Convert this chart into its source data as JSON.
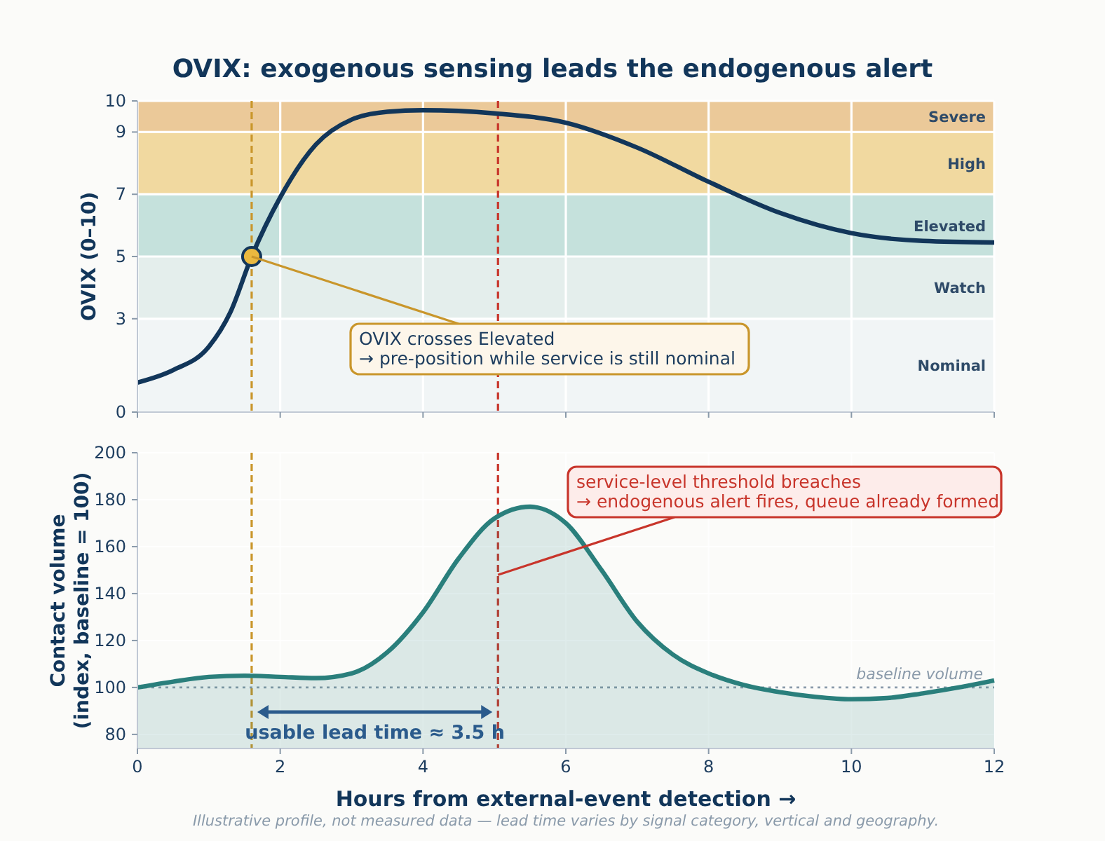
{
  "chart_data": [
    {
      "type": "line",
      "title": "OVIX: exogenous sensing leads the endogenous alert",
      "ylabel": "OVIX  (0–10)",
      "xlim": [
        0,
        12
      ],
      "xticks": [
        0,
        2,
        4,
        6,
        8,
        10,
        12
      ],
      "ylim": [
        0,
        10
      ],
      "yticks": [
        0,
        3,
        5,
        7,
        9,
        10
      ],
      "tick_labels": "y",
      "grid": true,
      "bands": [
        {
          "axis": "y",
          "from": 0,
          "to": 3,
          "label": "Nominal",
          "color": "#f1f5f6"
        },
        {
          "axis": "y",
          "from": 3,
          "to": 5,
          "label": "Watch",
          "color": "#e4eeec"
        },
        {
          "axis": "y",
          "from": 5,
          "to": 7,
          "label": "Elevated",
          "color": "#c5e1dc"
        },
        {
          "axis": "y",
          "from": 7,
          "to": 9,
          "label": "High",
          "color": "#f1d9a0"
        },
        {
          "axis": "y",
          "from": 9,
          "to": 10,
          "label": "Severe",
          "color": "#ebc999"
        }
      ],
      "ref_lines": [
        {
          "axis": "x",
          "value": 1.6,
          "color": "#c9962b",
          "line_style": "dashed"
        },
        {
          "axis": "x",
          "value": 5.05,
          "color": "#c8352b",
          "line_style": "dashed"
        }
      ],
      "series": [
        {
          "color": "#12365a",
          "x": [
            0,
            0.5,
            1,
            1.3,
            1.6,
            2,
            2.5,
            3,
            3.5,
            4,
            5,
            6,
            7,
            8,
            9,
            10,
            11,
            12
          ],
          "values": [
            0.95,
            1.35,
            2.1,
            3.2,
            5.0,
            6.9,
            8.6,
            9.4,
            9.65,
            9.7,
            9.6,
            9.3,
            8.5,
            7.4,
            6.4,
            5.75,
            5.5,
            5.45
          ]
        },
        {
          "type": "scatter",
          "color": "#eab93f",
          "marker": "circle",
          "x": [
            1.6
          ],
          "values": [
            5
          ]
        }
      ],
      "annotations": [
        {
          "text": "OVIX crosses Elevated\n→ pre-position while service is still nominal",
          "x": 1.6,
          "y": 5
        }
      ]
    },
    {
      "type": "area",
      "xlabel": "Hours from external-event detection  →",
      "ylabel": "Contact volume\n(index, baseline = 100)",
      "xlim": [
        0,
        12
      ],
      "xticks": [
        0,
        2,
        4,
        6,
        8,
        10,
        12
      ],
      "ylim": [
        74,
        200
      ],
      "yticks": [
        80,
        100,
        120,
        140,
        160,
        180,
        200
      ],
      "grid": true,
      "ref_lines": [
        {
          "axis": "x",
          "value": 1.6,
          "color": "#c9962b",
          "line_style": "dashed"
        },
        {
          "axis": "x",
          "value": 5.05,
          "color": "#c8352b",
          "line_style": "dashed"
        },
        {
          "axis": "y",
          "value": 100,
          "label": "baseline volume",
          "color": "#8a9aaa",
          "line_style": "dotted"
        }
      ],
      "series": [
        {
          "color": "#2a7f7c",
          "x": [
            0,
            0.5,
            1,
            1.5,
            2,
            2.5,
            3,
            3.5,
            4,
            4.5,
            5,
            5.5,
            6,
            6.5,
            7,
            7.5,
            8,
            8.5,
            9,
            9.5,
            10,
            10.5,
            11,
            11.5,
            12
          ],
          "values": [
            100,
            102.5,
            104.5,
            105,
            104.5,
            104,
            106,
            115,
            132,
            155,
            172,
            177,
            170,
            150,
            128,
            114,
            106,
            101,
            98,
            96,
            95,
            95.5,
            97.5,
            100,
            103
          ]
        }
      ],
      "annotations": [
        {
          "text": "service-level threshold breaches\n→ endogenous alert fires, queue already formed",
          "x": 5.05,
          "y": 148
        },
        "usable lead time ≈ 3.5 h",
        "Illustrative profile, not measured data — lead time varies by signal category, vertical and geography."
      ]
    }
  ]
}
